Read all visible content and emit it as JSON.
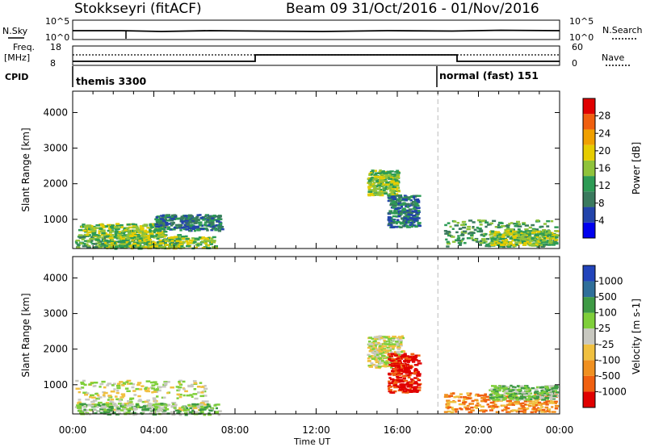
{
  "header": {
    "title": "Stokkseyri (fitACF)",
    "beam_date": "Beam 09   31/Oct/2016 - 01/Nov/2016"
  },
  "params": {
    "nsky_label": "N.Sky",
    "nsearch_label": "N.Search",
    "nsky_ticks": [
      "10^5",
      "10^0"
    ],
    "nsearch_ticks": [
      "10^5",
      "10^0"
    ],
    "freq_label": "Freq.",
    "freq_unit": "[MHz]",
    "freq_ticks": [
      "18",
      "8"
    ],
    "nave_label": "Nave",
    "nave_ticks": [
      "60",
      "0"
    ],
    "cpid_label": "CPID",
    "cpid_segments": [
      {
        "name": "themis 3300",
        "start_hour": 0
      },
      {
        "name": "normal (fast) 151",
        "start_hour": 18
      }
    ]
  },
  "time_axis": {
    "label": "Time UT",
    "ticks": [
      "00:00",
      "04:00",
      "08:00",
      "12:00",
      "16:00",
      "20:00",
      "00:00"
    ]
  },
  "chart_data": [
    {
      "type": "heatmap",
      "name": "power",
      "xlabel": "Time UT",
      "ylabel": "Slant Range [km]",
      "xlim": [
        0,
        24
      ],
      "ylim": [
        180,
        4600
      ],
      "yticks": [
        "4000",
        "3000",
        "2000",
        "1000"
      ],
      "colorbar_label": "Power [dB]",
      "colorbar_ticks": [
        "28",
        "24",
        "20",
        "16",
        "12",
        "8",
        "4"
      ],
      "colors": [
        "#0000ee",
        "#2244aa",
        "#3a7a5e",
        "#2d9b55",
        "#8fc33b",
        "#e6cc00",
        "#f0a000",
        "#f06010",
        "#e00000"
      ],
      "regions": [
        {
          "t0": 0.1,
          "t1": 5.3,
          "r0": 220,
          "r1": 600,
          "level": 3
        },
        {
          "t0": 0.2,
          "t1": 4.5,
          "r0": 550,
          "r1": 900,
          "level": 4
        },
        {
          "t0": 4.0,
          "t1": 7.3,
          "r0": 700,
          "r1": 1150,
          "level": 2
        },
        {
          "t0": 1.5,
          "t1": 7.0,
          "r0": 200,
          "r1": 550,
          "level": 4
        },
        {
          "t0": 14.5,
          "t1": 16.0,
          "r0": 1700,
          "r1": 2400,
          "level": 4
        },
        {
          "t0": 15.5,
          "t1": 17.0,
          "r0": 800,
          "r1": 1700,
          "level": 2
        },
        {
          "t0": 18.3,
          "t1": 23.8,
          "r0": 250,
          "r1": 1000,
          "level": 3
        },
        {
          "t0": 20.5,
          "t1": 23.8,
          "r0": 300,
          "r1": 700,
          "level": 4
        }
      ]
    },
    {
      "type": "heatmap",
      "name": "velocity",
      "xlabel": "Time UT",
      "ylabel": "Slant Range [km]",
      "xlim": [
        0,
        24
      ],
      "ylim": [
        180,
        4600
      ],
      "yticks": [
        "4000",
        "3000",
        "2000",
        "1000"
      ],
      "colorbar_label": "Velocity [m s-1]",
      "colorbar_ticks": [
        "1000",
        "500",
        "100",
        "25",
        "-25",
        "-100",
        "-500",
        "-1000"
      ],
      "colors": [
        "#2244bb",
        "#2f6f9a",
        "#3e9a45",
        "#7fcf3a",
        "#c8c8c0",
        "#f0c040",
        "#f09020",
        "#f06010",
        "#e00000"
      ],
      "regions": [
        {
          "t0": 0.1,
          "t1": 6.5,
          "r0": 300,
          "r1": 1150,
          "level": 4
        },
        {
          "t0": 0.2,
          "t1": 7.2,
          "r0": 180,
          "r1": 500,
          "level": 3
        },
        {
          "t0": 14.5,
          "t1": 16.2,
          "r0": 1500,
          "r1": 2400,
          "level": 4
        },
        {
          "t0": 15.5,
          "t1": 17.0,
          "r0": 800,
          "r1": 1900,
          "level": 8
        },
        {
          "t0": 18.3,
          "t1": 23.8,
          "r0": 250,
          "r1": 800,
          "level": 6
        },
        {
          "t0": 20.5,
          "t1": 23.8,
          "r0": 600,
          "r1": 1000,
          "level": 3
        }
      ]
    }
  ]
}
